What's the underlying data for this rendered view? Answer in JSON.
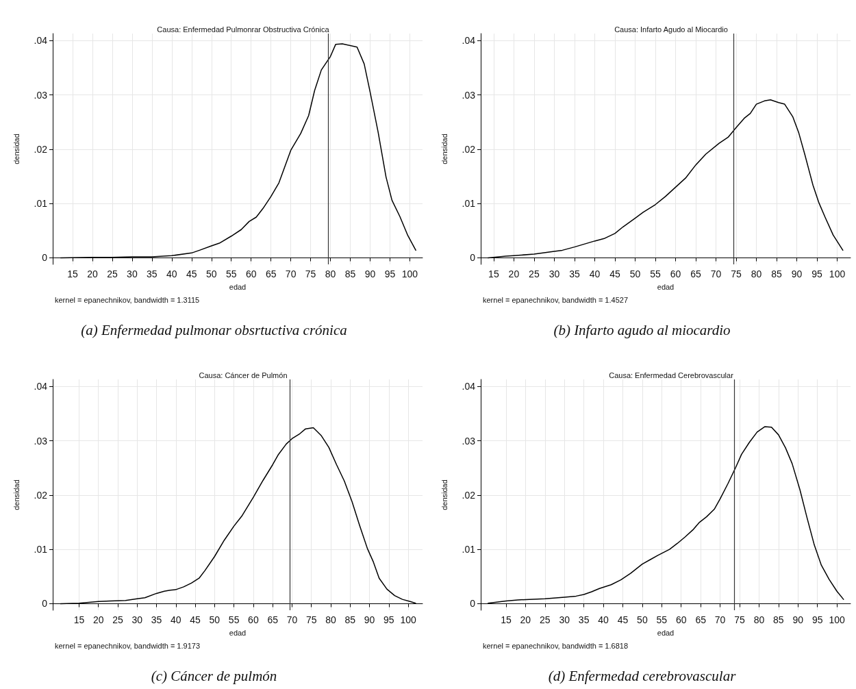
{
  "chart_data": [
    {
      "type": "line",
      "title": "Causa: Enfermedad Pulmonrar Obstructiva Crónica",
      "xlabel": "edad",
      "ylabel": "densidad",
      "color": "#000000",
      "grid": true,
      "marker": "none",
      "line_style": "solid",
      "xlim": [
        10,
        103.2
      ],
      "xticks": [
        15,
        20,
        25,
        30,
        35,
        40,
        45,
        50,
        55,
        60,
        65,
        70,
        75,
        80,
        85,
        90,
        95,
        100
      ],
      "ylim": [
        -0.0012,
        0.0413
      ],
      "yticks": [
        {
          "value": 0,
          "label": "0"
        },
        {
          "value": 0.01,
          "label": ".01"
        },
        {
          "value": 0.02,
          "label": ".02"
        },
        {
          "value": 0.03,
          "label": ".03"
        },
        {
          "value": 0.04,
          "label": ".04"
        }
      ],
      "x": [
        12,
        20,
        25,
        30,
        35,
        40,
        45,
        47,
        50,
        52,
        55,
        57.5,
        59.5,
        61.3,
        63,
        65,
        67,
        70,
        72.5,
        74.5,
        76,
        77.7,
        80,
        81.3,
        83,
        86.7,
        88.5,
        90,
        92,
        94,
        95.5,
        97.5,
        99.5,
        101.5
      ],
      "values": [
        0,
        0.0001,
        0.0001,
        0.0002,
        0.0002,
        0.0004,
        0.0009,
        0.0014,
        0.0022,
        0.0027,
        0.004,
        0.0052,
        0.0067,
        0.0075,
        0.0091,
        0.0113,
        0.0138,
        0.0198,
        0.0229,
        0.0262,
        0.0308,
        0.0346,
        0.0371,
        0.0393,
        0.0394,
        0.0388,
        0.0357,
        0.0305,
        0.0232,
        0.0149,
        0.0106,
        0.0076,
        0.0041,
        0.0014
      ],
      "ref_lines": [
        {
          "axis": "x",
          "value": 79.4,
          "color": "#333333"
        }
      ],
      "annotations": [
        "kernel = epanechnikov, bandwidth = 1.3115",
        "(a) Enfermedad pulmonar obsrtuctiva crónica"
      ]
    },
    {
      "type": "line",
      "title": "Causa: Infarto Agudo al Miocardio",
      "xlabel": "edad",
      "ylabel": "densidad",
      "color": "#000000",
      "grid": true,
      "marker": "none",
      "line_style": "solid",
      "xlim": [
        11.8,
        103.3
      ],
      "xticks": [
        15,
        20,
        25,
        30,
        35,
        40,
        45,
        50,
        55,
        60,
        65,
        70,
        75,
        80,
        85,
        90,
        95,
        100
      ],
      "ylim": [
        -0.0012,
        0.0413
      ],
      "yticks": [
        {
          "value": 0,
          "label": "0"
        },
        {
          "value": 0.01,
          "label": ".01"
        },
        {
          "value": 0.02,
          "label": ".02"
        },
        {
          "value": 0.03,
          "label": ".03"
        },
        {
          "value": 0.04,
          "label": ".04"
        }
      ],
      "x": [
        13.6,
        15,
        18,
        20,
        25,
        30,
        32,
        35,
        40,
        42.5,
        45,
        47,
        50,
        52,
        55,
        57.5,
        60,
        62.5,
        65,
        67.5,
        70.8,
        73,
        75,
        77,
        78.5,
        80,
        82,
        83.5,
        85.5,
        87,
        89,
        90.5,
        92,
        94,
        95.5,
        97,
        99,
        101.4
      ],
      "values": [
        0,
        0.0001,
        0.0003,
        0.0004,
        0.0007,
        0.0012,
        0.0014,
        0.002,
        0.0031,
        0.0036,
        0.0045,
        0.0057,
        0.0073,
        0.0084,
        0.0098,
        0.0113,
        0.013,
        0.0147,
        0.0171,
        0.0191,
        0.0211,
        0.0222,
        0.024,
        0.0257,
        0.0266,
        0.0283,
        0.0289,
        0.0291,
        0.0286,
        0.0283,
        0.026,
        0.023,
        0.019,
        0.0134,
        0.0101,
        0.0075,
        0.0042,
        0.0014
      ],
      "ref_lines": [
        {
          "axis": "x",
          "value": 74.3,
          "color": "#333333"
        }
      ],
      "annotations": [
        "kernel = epanechnikov, bandwidth = 1.4527",
        "(b) Infarto agudo al miocardio"
      ]
    },
    {
      "type": "line",
      "title": "Causa: Cáncer de Pulmón",
      "xlabel": "edad",
      "ylabel": "densidad",
      "color": "#000000",
      "grid": true,
      "marker": "none",
      "line_style": "solid",
      "xlim": [
        8.2,
        103.7
      ],
      "xticks": [
        15,
        20,
        25,
        30,
        35,
        40,
        45,
        50,
        55,
        60,
        65,
        70,
        75,
        80,
        85,
        90,
        95,
        100
      ],
      "ylim": [
        -0.0012,
        0.0413
      ],
      "yticks": [
        {
          "value": 0,
          "label": "0"
        },
        {
          "value": 0.01,
          "label": ".01"
        },
        {
          "value": 0.02,
          "label": ".02"
        },
        {
          "value": 0.03,
          "label": ".03"
        },
        {
          "value": 0.04,
          "label": ".04"
        }
      ],
      "x": [
        10.2,
        15,
        20,
        23,
        27,
        30,
        32,
        35,
        37,
        38.5,
        40,
        42,
        44,
        46,
        47.5,
        50,
        52.5,
        55,
        57,
        60,
        62.5,
        65,
        66.5,
        68.5,
        70,
        72,
        73.5,
        75.5,
        77.5,
        79.5,
        81.5,
        83.5,
        85.5,
        87.5,
        89.5,
        91,
        92.5,
        94.5,
        96.5,
        98.5,
        100.5,
        101.9
      ],
      "values": [
        0,
        0.0001,
        0.0004,
        0.0005,
        0.0006,
        0.0009,
        0.0011,
        0.0019,
        0.0023,
        0.0025,
        0.0026,
        0.0031,
        0.0038,
        0.0047,
        0.0061,
        0.0087,
        0.0117,
        0.0143,
        0.0161,
        0.0196,
        0.0227,
        0.0256,
        0.0275,
        0.0294,
        0.0304,
        0.0313,
        0.0322,
        0.0324,
        0.031,
        0.0288,
        0.0256,
        0.0226,
        0.0188,
        0.0143,
        0.0101,
        0.0077,
        0.0047,
        0.0027,
        0.0015,
        0.0008,
        0.0004,
        0.0001
      ],
      "ref_lines": [
        {
          "axis": "x",
          "value": 69.5,
          "color": "#333333"
        }
      ],
      "annotations": [
        "kernel = epanechnikov, bandwidth = 1.9173",
        "(c) Cáncer de pulmón"
      ]
    },
    {
      "type": "line",
      "title": "Causa: Enfermedad Cerebrovascular",
      "xlabel": "edad",
      "ylabel": "densidad",
      "color": "#000000",
      "grid": true,
      "marker": "none",
      "line_style": "solid",
      "xlim": [
        8.5,
        103.5
      ],
      "xticks": [
        15,
        20,
        25,
        30,
        35,
        40,
        45,
        50,
        55,
        60,
        65,
        70,
        75,
        80,
        85,
        90,
        95,
        100
      ],
      "ylim": [
        -0.0012,
        0.0413
      ],
      "yticks": [
        {
          "value": 0,
          "label": "0"
        },
        {
          "value": 0.01,
          "label": ".01"
        },
        {
          "value": 0.02,
          "label": ".02"
        },
        {
          "value": 0.03,
          "label": ".03"
        },
        {
          "value": 0.04,
          "label": ".04"
        }
      ],
      "x": [
        10.4,
        15,
        18,
        21,
        25,
        30,
        33,
        35,
        37,
        39,
        42,
        44.5,
        47,
        50,
        52,
        54,
        57,
        59,
        61,
        63,
        64.7,
        66.5,
        68.5,
        70,
        72,
        74,
        75.5,
        77.5,
        79.5,
        81.5,
        83.2,
        85,
        86.8,
        88.5,
        90.5,
        92.3,
        94.2,
        96,
        98,
        100,
        101.7
      ],
      "values": [
        0.0001,
        0.0005,
        0.0007,
        0.0008,
        0.0009,
        0.0012,
        0.0014,
        0.0017,
        0.0022,
        0.0028,
        0.0035,
        0.0044,
        0.0056,
        0.0073,
        0.0081,
        0.0089,
        0.01,
        0.0111,
        0.0123,
        0.0136,
        0.015,
        0.016,
        0.0174,
        0.0193,
        0.0221,
        0.0251,
        0.0275,
        0.0297,
        0.0316,
        0.0326,
        0.0325,
        0.0311,
        0.0287,
        0.0258,
        0.021,
        0.0159,
        0.0108,
        0.0071,
        0.0045,
        0.0023,
        0.0008
      ],
      "ref_lines": [
        {
          "axis": "x",
          "value": 73.7,
          "color": "#333333"
        }
      ],
      "annotations": [
        "kernel = epanechnikov, bandwidth = 1.6818",
        "(d) Enfermedad cerebrovascular"
      ]
    }
  ]
}
